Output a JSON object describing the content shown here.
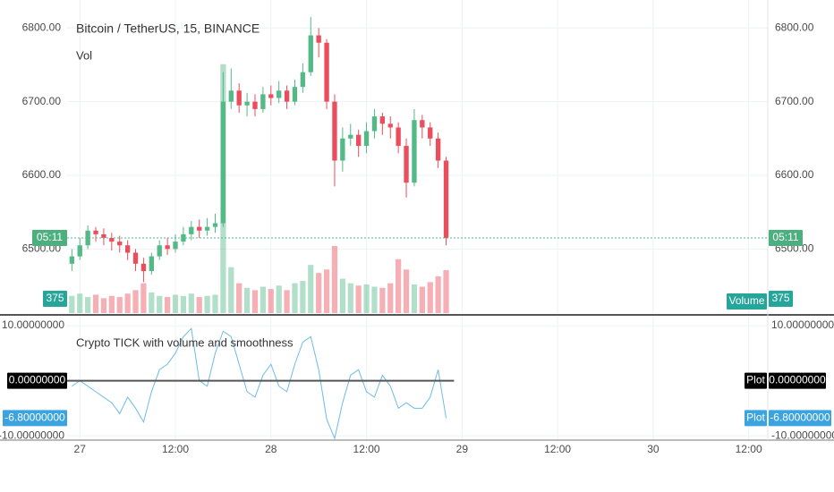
{
  "chart_data": {
    "type": "candlestick",
    "title": "Bitcoin / TetherUS, 15, BINANCE",
    "volume_title": "Vol",
    "volume_label": "Volume",
    "countdown": "05:11",
    "x": [
      -1,
      0,
      1,
      2,
      3,
      4,
      5,
      6,
      7,
      8,
      9,
      10,
      11,
      12,
      13,
      14,
      15,
      16,
      17,
      18,
      19,
      20,
      21,
      22,
      23,
      24,
      25,
      26,
      27,
      28,
      29,
      30,
      31,
      32,
      33,
      34,
      35,
      36,
      37,
      38,
      39,
      40,
      41,
      42,
      43,
      44,
      45,
      46
    ],
    "open": [
      6480,
      6490,
      6505,
      6525,
      6520,
      6515,
      6510,
      6505,
      6495,
      6480,
      6470,
      6490,
      6505,
      6500,
      6510,
      6520,
      6530,
      6525,
      6530,
      6535,
      6700,
      6715,
      6695,
      6700,
      6690,
      6710,
      6705,
      6715,
      6700,
      6720,
      6740,
      6790,
      6780,
      6700,
      6620,
      6650,
      6655,
      6640,
      6660,
      6680,
      6670,
      6665,
      6640,
      6590,
      6675,
      6665,
      6650,
      6620
    ],
    "high": [
      6500,
      6515,
      6532,
      6530,
      6528,
      6522,
      6518,
      6512,
      6500,
      6488,
      6495,
      6512,
      6515,
      6520,
      6530,
      6538,
      6540,
      6542,
      6548,
      6740,
      6745,
      6725,
      6712,
      6710,
      6720,
      6722,
      6728,
      6722,
      6730,
      6752,
      6815,
      6800,
      6785,
      6710,
      6665,
      6670,
      6662,
      6672,
      6690,
      6685,
      6680,
      6672,
      6650,
      6690,
      6682,
      6672,
      6658,
      6625
    ],
    "low": [
      6470,
      6485,
      6500,
      6510,
      6505,
      6498,
      6495,
      6485,
      6470,
      6455,
      6465,
      6485,
      6492,
      6495,
      6505,
      6512,
      6515,
      6518,
      6522,
      6530,
      6690,
      6685,
      6680,
      6680,
      6685,
      6695,
      6698,
      6690,
      6695,
      6712,
      6735,
      6760,
      6690,
      6585,
      6605,
      6640,
      6625,
      6630,
      6650,
      6655,
      6650,
      6630,
      6570,
      6585,
      6650,
      6640,
      6610,
      6505
    ],
    "close": [
      6490,
      6505,
      6525,
      6520,
      6515,
      6510,
      6505,
      6495,
      6480,
      6470,
      6490,
      6505,
      6500,
      6510,
      6520,
      6530,
      6525,
      6530,
      6535,
      6700,
      6715,
      6695,
      6700,
      6690,
      6710,
      6705,
      6715,
      6700,
      6720,
      6740,
      6790,
      6780,
      6700,
      6620,
      6650,
      6655,
      6640,
      6660,
      6680,
      6670,
      6665,
      6640,
      6590,
      6675,
      6665,
      6650,
      6620,
      6515
    ],
    "volume": [
      150,
      170,
      140,
      160,
      130,
      150,
      140,
      170,
      200,
      260,
      180,
      150,
      140,
      160,
      150,
      170,
      140,
      150,
      160,
      2170,
      400,
      260,
      220,
      200,
      230,
      210,
      240,
      200,
      260,
      280,
      420,
      350,
      380,
      585,
      300,
      260,
      240,
      250,
      230,
      220,
      260,
      470,
      380,
      250,
      230,
      270,
      320,
      375
    ],
    "up_color": "#53b987",
    "down_color": "#eb4d5c",
    "ylim": [
      6413,
      6838
    ],
    "yticks": [
      {
        "value": 6500,
        "label": "6500.00"
      },
      {
        "value": 6600,
        "label": "6600.00"
      },
      {
        "value": 6700,
        "label": "6700.00"
      },
      {
        "value": 6800,
        "label": "6800.00"
      }
    ],
    "volume_lim": [
      0,
      2730
    ],
    "xlim": [
      -1.6,
      86.4
    ],
    "xticks": [
      {
        "value": 0,
        "label": "27"
      },
      {
        "value": 12,
        "label": "12:00"
      },
      {
        "value": 24,
        "label": "28"
      },
      {
        "value": 36,
        "label": "12:00"
      },
      {
        "value": 48,
        "label": "29"
      },
      {
        "value": 60,
        "label": "12:00"
      },
      {
        "value": 72,
        "label": "30"
      },
      {
        "value": 84,
        "label": "12:00"
      }
    ],
    "grid": true,
    "indicator": {
      "type": "line",
      "title": "Crypto TICK with volume and smoothness",
      "series_name": "Plot",
      "color": "#6dbbe6",
      "values": [
        -1,
        0,
        -1,
        -2,
        -3,
        -4,
        -6,
        -3,
        -5,
        -7.5,
        -2,
        2,
        3,
        5,
        8,
        9.5,
        0,
        -1,
        5,
        9,
        8,
        3,
        -2,
        -3,
        1,
        3,
        -1,
        -2,
        3,
        7,
        8,
        2,
        -7,
        -10.5,
        -4,
        1,
        2,
        -2,
        -3,
        1,
        -1,
        -5,
        -4,
        -5,
        -5,
        -3,
        2,
        -6.8
      ],
      "last_value_label": "-6.80000000",
      "ylim": [
        -10.8,
        11.8
      ],
      "yticks": [
        {
          "value": 10,
          "label": "10.00000000"
        },
        {
          "value": -10,
          "label": "-10.00000000"
        }
      ],
      "hline": {
        "value": 0,
        "label": "0.00000000"
      }
    }
  }
}
